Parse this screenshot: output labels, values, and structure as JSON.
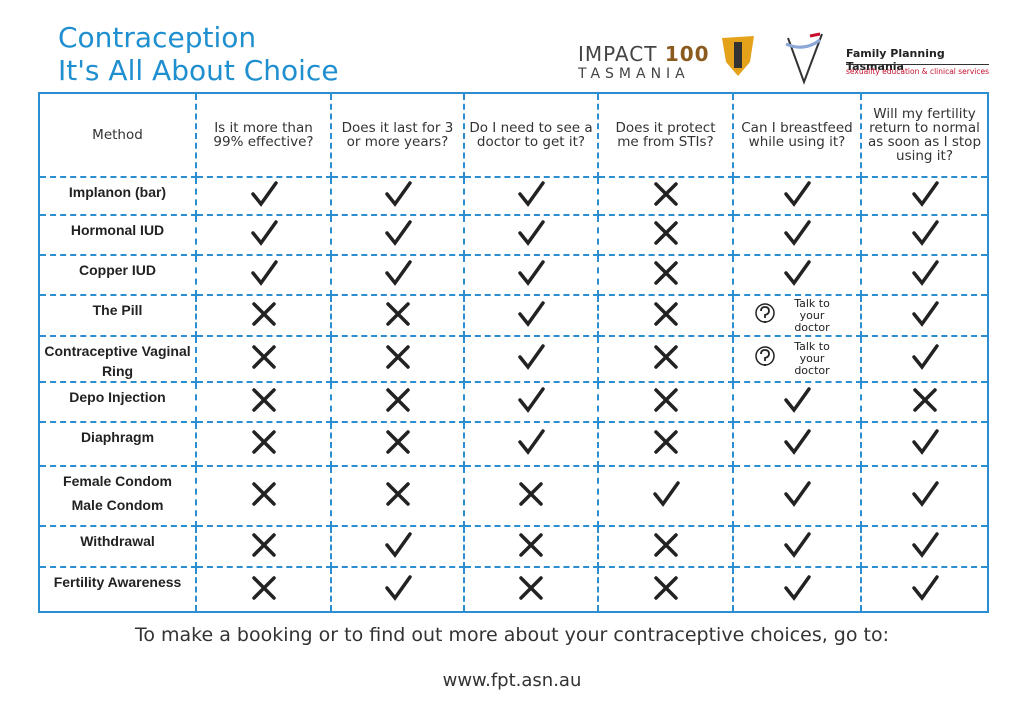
{
  "header": {
    "title_line1": "Contraception",
    "title_line2": "It's All About Choice",
    "logo_impact": "IMPACT",
    "logo_number": "100",
    "logo_place": "TASMANIA",
    "org_name": "Family Planning Tasmania",
    "org_tagline": "sexuality education & clinical services"
  },
  "table": {
    "columns": [
      "Method",
      "Is it more than 99% effective?",
      "Does it last for 3 or more years?",
      "Do I need to see a doctor to get it?",
      "Does it protect me from STIs?",
      "Can I breastfeed while using it?",
      "Will my fertility return to normal as soon as I stop using it?"
    ],
    "rows": [
      {
        "method": [
          "Implanon (bar)"
        ],
        "answers": [
          true,
          true,
          true,
          false,
          true,
          true
        ]
      },
      {
        "method": [
          "Hormonal IUD"
        ],
        "answers": [
          true,
          true,
          true,
          false,
          true,
          true
        ]
      },
      {
        "method": [
          "Copper IUD"
        ],
        "answers": [
          true,
          true,
          true,
          false,
          true,
          true
        ]
      },
      {
        "method": [
          "The Pill"
        ],
        "answers": [
          false,
          false,
          true,
          false,
          "Talk to your doctor",
          true
        ]
      },
      {
        "method": [
          "Contraceptive Vaginal Ring"
        ],
        "answers": [
          false,
          false,
          true,
          false,
          "Talk to your doctor",
          true
        ]
      },
      {
        "method": [
          "Depo Injection"
        ],
        "answers": [
          false,
          false,
          true,
          false,
          true,
          false
        ]
      },
      {
        "method": [
          "Diaphragm"
        ],
        "answers": [
          false,
          false,
          true,
          false,
          true,
          true
        ]
      },
      {
        "method": [
          "Female Condom",
          "Male Condom"
        ],
        "answers": [
          false,
          false,
          false,
          true,
          true,
          true
        ]
      },
      {
        "method": [
          "Withdrawal"
        ],
        "answers": [
          false,
          true,
          false,
          false,
          true,
          true
        ]
      },
      {
        "method": [
          "Fertility Awareness"
        ],
        "answers": [
          false,
          true,
          false,
          false,
          true,
          true
        ]
      }
    ]
  },
  "footer": {
    "text": "To make a booking or to find out more about your contraceptive choices, go to:",
    "url": "www.fpt.asn.au"
  }
}
